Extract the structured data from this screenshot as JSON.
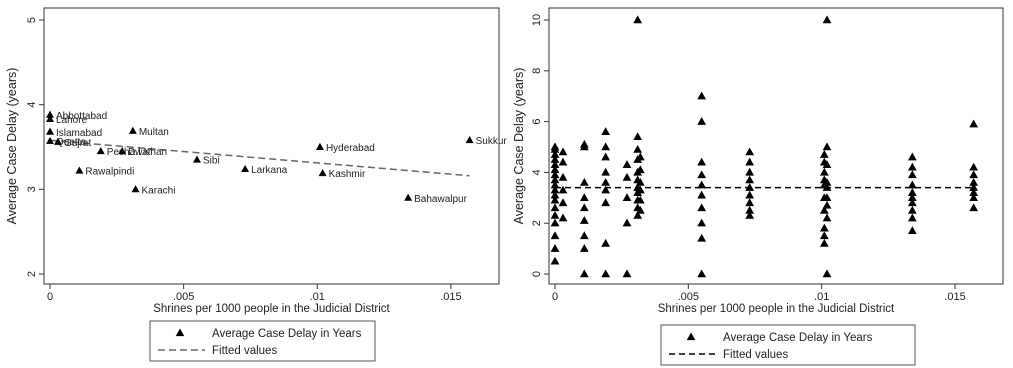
{
  "colors": {
    "plot_bg": "#ffffff",
    "marker": "#000000",
    "fit_line_left": "#666666",
    "fit_line_right": "#000000",
    "axis": "#333333"
  },
  "chart_data": [
    {
      "type": "scatter",
      "title": "",
      "xlabel": "Shrines per 1000 people in the Judicial District",
      "ylabel": "Average Case Delay (years)",
      "xlim": [
        0,
        0.0165
      ],
      "ylim": [
        2,
        5
      ],
      "x_ticks": [
        0,
        0.005,
        0.01,
        0.015
      ],
      "x_tick_labels": [
        "0",
        ".005",
        ".01",
        ".015"
      ],
      "y_ticks": [
        2,
        3,
        4,
        5
      ],
      "y_tick_labels": [
        "2",
        "3",
        "4",
        "5"
      ],
      "grid": false,
      "legend": {
        "placement": "bottom",
        "entries": [
          "Average Case Delay in Years",
          "Fitted values"
        ]
      },
      "series": [
        {
          "name": "Average Case Delay in Years",
          "kind": "scatter",
          "points": [
            {
              "x": 0,
              "y": 3.88,
              "label": "Abbottabad"
            },
            {
              "x": 0,
              "y": 3.83,
              "label": "Lahore"
            },
            {
              "x": 0,
              "y": 3.68,
              "label": "Islamabad"
            },
            {
              "x": 0,
              "y": 3.57,
              "label": "Quetta"
            },
            {
              "x": 0.0003,
              "y": 3.56,
              "label": "Gujrat"
            },
            {
              "x": 0.0011,
              "y": 3.22,
              "label": "Rawalpindi"
            },
            {
              "x": 0.0019,
              "y": 3.45,
              "label": "Peshawar"
            },
            {
              "x": 0.0027,
              "y": 3.45,
              "label": "D.I.Khan"
            },
            {
              "x": 0.0031,
              "y": 3.69,
              "label": "Multan"
            },
            {
              "x": 0.0032,
              "y": 3.0,
              "label": "Karachi"
            },
            {
              "x": 0.0055,
              "y": 3.35,
              "label": "Sibi"
            },
            {
              "x": 0.0073,
              "y": 3.24,
              "label": "Larkana"
            },
            {
              "x": 0.0101,
              "y": 3.5,
              "label": "Hyderabad"
            },
            {
              "x": 0.0102,
              "y": 3.19,
              "label": "Kashmir"
            },
            {
              "x": 0.0134,
              "y": 2.9,
              "label": "Bahawalpur"
            },
            {
              "x": 0.0157,
              "y": 3.58,
              "label": "Sukkur"
            }
          ]
        },
        {
          "name": "Fitted values",
          "kind": "line",
          "points": [
            {
              "x": 0,
              "y": 3.58
            },
            {
              "x": 0.0157,
              "y": 3.16
            }
          ]
        }
      ]
    },
    {
      "type": "scatter",
      "title": "",
      "xlabel": "Shrines per 1000 people in the Judicial District",
      "ylabel": "Average Case Delay (years)",
      "xlim": [
        0,
        0.0165
      ],
      "ylim": [
        0,
        10
      ],
      "x_ticks": [
        0,
        0.005,
        0.01,
        0.015
      ],
      "x_tick_labels": [
        "0",
        ".005",
        ".01",
        ".015"
      ],
      "y_ticks": [
        0,
        2,
        4,
        6,
        8,
        10
      ],
      "y_tick_labels": [
        "0",
        "2",
        "4",
        "6",
        "8",
        "10"
      ],
      "grid": false,
      "legend": {
        "placement": "bottom",
        "entries": [
          "Average Case Delay in Years",
          "Fitted values"
        ]
      },
      "series": [
        {
          "name": "Average Case Delay in Years",
          "kind": "scatter",
          "points": [
            {
              "x": 0,
              "y": 0.5
            },
            {
              "x": 0,
              "y": 1.0
            },
            {
              "x": 0,
              "y": 1.5
            },
            {
              "x": 0,
              "y": 2.0
            },
            {
              "x": 0,
              "y": 2.3
            },
            {
              "x": 0,
              "y": 2.6
            },
            {
              "x": 0,
              "y": 2.9
            },
            {
              "x": 0,
              "y": 3.1
            },
            {
              "x": 0,
              "y": 3.3
            },
            {
              "x": 0,
              "y": 3.5
            },
            {
              "x": 0,
              "y": 3.7
            },
            {
              "x": 0,
              "y": 3.9
            },
            {
              "x": 0,
              "y": 4.1
            },
            {
              "x": 0,
              "y": 4.3
            },
            {
              "x": 0,
              "y": 4.5
            },
            {
              "x": 0,
              "y": 4.7
            },
            {
              "x": 0,
              "y": 4.9
            },
            {
              "x": 0,
              "y": 5.0
            },
            {
              "x": 0.0003,
              "y": 2.2
            },
            {
              "x": 0.0003,
              "y": 2.8
            },
            {
              "x": 0.0003,
              "y": 3.3
            },
            {
              "x": 0.0003,
              "y": 3.8
            },
            {
              "x": 0.0003,
              "y": 4.4
            },
            {
              "x": 0.0003,
              "y": 4.8
            },
            {
              "x": 0.0011,
              "y": 0
            },
            {
              "x": 0.0011,
              "y": 1.0
            },
            {
              "x": 0.0011,
              "y": 1.5
            },
            {
              "x": 0.0011,
              "y": 2.1
            },
            {
              "x": 0.0011,
              "y": 2.6
            },
            {
              "x": 0.0011,
              "y": 3.0
            },
            {
              "x": 0.0011,
              "y": 3.6
            },
            {
              "x": 0.0011,
              "y": 5.0
            },
            {
              "x": 0.0011,
              "y": 5.1
            },
            {
              "x": 0.0019,
              "y": 0
            },
            {
              "x": 0.0019,
              "y": 1.2
            },
            {
              "x": 0.0019,
              "y": 2.8
            },
            {
              "x": 0.0019,
              "y": 3.3
            },
            {
              "x": 0.0019,
              "y": 3.6
            },
            {
              "x": 0.0019,
              "y": 4.0
            },
            {
              "x": 0.0019,
              "y": 4.6
            },
            {
              "x": 0.0019,
              "y": 5.0
            },
            {
              "x": 0.0019,
              "y": 5.6
            },
            {
              "x": 0.0027,
              "y": 0
            },
            {
              "x": 0.0027,
              "y": 2.0
            },
            {
              "x": 0.0027,
              "y": 3.0
            },
            {
              "x": 0.0027,
              "y": 3.8
            },
            {
              "x": 0.0027,
              "y": 4.3
            },
            {
              "x": 0.0031,
              "y": 2.3
            },
            {
              "x": 0.0031,
              "y": 2.6
            },
            {
              "x": 0.0031,
              "y": 2.9
            },
            {
              "x": 0.0031,
              "y": 3.2
            },
            {
              "x": 0.0031,
              "y": 3.4
            },
            {
              "x": 0.0031,
              "y": 3.7
            },
            {
              "x": 0.0031,
              "y": 4.0
            },
            {
              "x": 0.0031,
              "y": 4.5
            },
            {
              "x": 0.0031,
              "y": 4.9
            },
            {
              "x": 0.0031,
              "y": 5.4
            },
            {
              "x": 0.0031,
              "y": 10.0
            },
            {
              "x": 0.0032,
              "y": 2.5
            },
            {
              "x": 0.0032,
              "y": 2.9
            },
            {
              "x": 0.0032,
              "y": 3.3
            },
            {
              "x": 0.0032,
              "y": 3.6
            },
            {
              "x": 0.0032,
              "y": 4.1
            },
            {
              "x": 0.0032,
              "y": 4.6
            },
            {
              "x": 0.0055,
              "y": 0
            },
            {
              "x": 0.0055,
              "y": 1.4
            },
            {
              "x": 0.0055,
              "y": 2.0
            },
            {
              "x": 0.0055,
              "y": 2.6
            },
            {
              "x": 0.0055,
              "y": 3.1
            },
            {
              "x": 0.0055,
              "y": 3.5
            },
            {
              "x": 0.0055,
              "y": 3.9
            },
            {
              "x": 0.0055,
              "y": 4.4
            },
            {
              "x": 0.0055,
              "y": 6.0
            },
            {
              "x": 0.0055,
              "y": 7.0
            },
            {
              "x": 0.0073,
              "y": 2.3
            },
            {
              "x": 0.0073,
              "y": 2.5
            },
            {
              "x": 0.0073,
              "y": 2.8
            },
            {
              "x": 0.0073,
              "y": 3.1
            },
            {
              "x": 0.0073,
              "y": 3.4
            },
            {
              "x": 0.0073,
              "y": 3.7
            },
            {
              "x": 0.0073,
              "y": 4.0
            },
            {
              "x": 0.0073,
              "y": 4.4
            },
            {
              "x": 0.0073,
              "y": 4.8
            },
            {
              "x": 0.0101,
              "y": 1.2
            },
            {
              "x": 0.0101,
              "y": 1.5
            },
            {
              "x": 0.0101,
              "y": 1.8
            },
            {
              "x": 0.0101,
              "y": 2.5
            },
            {
              "x": 0.0101,
              "y": 3.0
            },
            {
              "x": 0.0101,
              "y": 3.5
            },
            {
              "x": 0.0101,
              "y": 3.7
            },
            {
              "x": 0.0101,
              "y": 4.0
            },
            {
              "x": 0.0101,
              "y": 4.4
            },
            {
              "x": 0.0101,
              "y": 4.7
            },
            {
              "x": 0.0102,
              "y": 0
            },
            {
              "x": 0.0102,
              "y": 2.2
            },
            {
              "x": 0.0102,
              "y": 2.7
            },
            {
              "x": 0.0102,
              "y": 3.0
            },
            {
              "x": 0.0102,
              "y": 3.4
            },
            {
              "x": 0.0102,
              "y": 3.6
            },
            {
              "x": 0.0102,
              "y": 4.3
            },
            {
              "x": 0.0102,
              "y": 5.0
            },
            {
              "x": 0.0102,
              "y": 10.0
            },
            {
              "x": 0.0134,
              "y": 1.7
            },
            {
              "x": 0.0134,
              "y": 2.2
            },
            {
              "x": 0.0134,
              "y": 2.5
            },
            {
              "x": 0.0134,
              "y": 2.8
            },
            {
              "x": 0.0134,
              "y": 3.0
            },
            {
              "x": 0.0134,
              "y": 3.2
            },
            {
              "x": 0.0134,
              "y": 3.5
            },
            {
              "x": 0.0134,
              "y": 3.9
            },
            {
              "x": 0.0134,
              "y": 4.2
            },
            {
              "x": 0.0134,
              "y": 4.6
            },
            {
              "x": 0.0157,
              "y": 2.6
            },
            {
              "x": 0.0157,
              "y": 3.0
            },
            {
              "x": 0.0157,
              "y": 3.2
            },
            {
              "x": 0.0157,
              "y": 3.4
            },
            {
              "x": 0.0157,
              "y": 3.6
            },
            {
              "x": 0.0157,
              "y": 3.9
            },
            {
              "x": 0.0157,
              "y": 4.2
            },
            {
              "x": 0.0157,
              "y": 5.9
            }
          ]
        },
        {
          "name": "Fitted values",
          "kind": "line",
          "points": [
            {
              "x": 0,
              "y": 3.4
            },
            {
              "x": 0.0157,
              "y": 3.4
            }
          ]
        }
      ]
    }
  ]
}
